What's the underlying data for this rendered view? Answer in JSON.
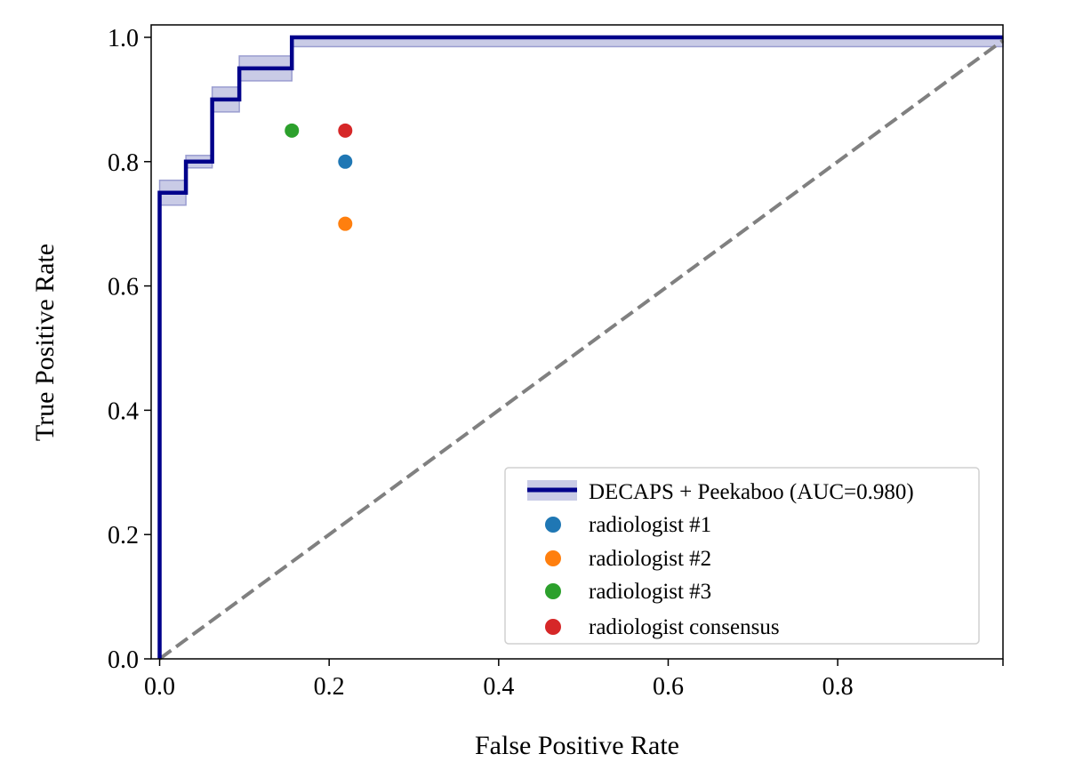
{
  "chart_data": {
    "type": "line",
    "title": "",
    "xlabel": "False Positive Rate",
    "ylabel": "True Positive Rate",
    "xlim": [
      -0.01,
      0.995
    ],
    "ylim": [
      0,
      1.02
    ],
    "xticks": [
      "0.0",
      "0.2",
      "0.4",
      "0.6",
      "0.8"
    ],
    "yticks": [
      "0.0",
      "0.2",
      "0.4",
      "0.6",
      "0.8",
      "1.0"
    ],
    "grid": false,
    "legend_position": "bottom-right",
    "series": [
      {
        "name": "DECAPS + Peekaboo (AUC=0.980)",
        "kind": "line",
        "color": "#00008b",
        "x": [
          0,
          0,
          0.031,
          0.031,
          0.062,
          0.062,
          0.094,
          0.094,
          0.156,
          0.156,
          1.0
        ],
        "y": [
          0,
          0.75,
          0.75,
          0.8,
          0.8,
          0.9,
          0.9,
          0.95,
          0.95,
          1.0,
          1.0
        ],
        "confidence_band": {
          "color": "#c9cbe6",
          "segments": [
            {
              "x": [
                0,
                0.031
              ],
              "lower": 0.73,
              "upper": 0.77
            },
            {
              "x": [
                0.031,
                0.062
              ],
              "lower": 0.79,
              "upper": 0.81
            },
            {
              "x": [
                0.062,
                0.094
              ],
              "lower": 0.88,
              "upper": 0.92
            },
            {
              "x": [
                0.094,
                0.156
              ],
              "lower": 0.93,
              "upper": 0.97
            },
            {
              "x": [
                0.156,
                1.0
              ],
              "lower": 0.985,
              "upper": 1.0
            }
          ]
        }
      },
      {
        "name": "radiologist #1",
        "kind": "point",
        "color": "#1f77b4",
        "x": [
          0.219
        ],
        "y": [
          0.8
        ]
      },
      {
        "name": "radiologist #2",
        "kind": "point",
        "color": "#ff7f0e",
        "x": [
          0.219
        ],
        "y": [
          0.7
        ]
      },
      {
        "name": "radiologist #3",
        "kind": "point",
        "color": "#2ca02c",
        "x": [
          0.156
        ],
        "y": [
          0.85
        ]
      },
      {
        "name": "radiologist consensus",
        "kind": "point",
        "color": "#d62728",
        "x": [
          0.219
        ],
        "y": [
          0.85
        ]
      }
    ],
    "chance_line": {
      "color": "#808080",
      "style": "dashed",
      "x": [
        0,
        1
      ],
      "y": [
        0,
        1
      ]
    }
  }
}
